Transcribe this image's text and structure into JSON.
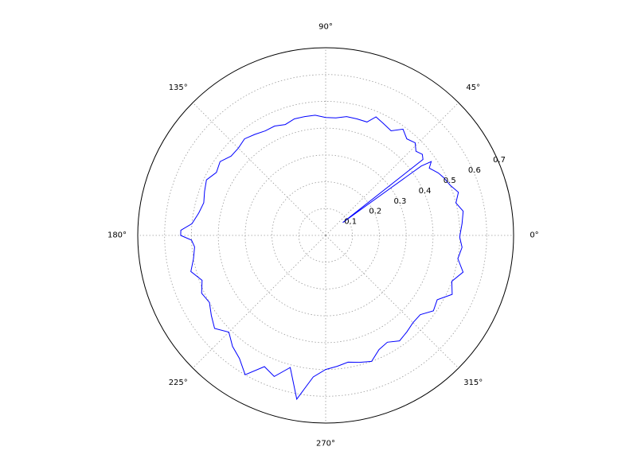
{
  "chart_data": {
    "type": "polar-line",
    "angle_unit": "degrees",
    "r_max": 0.7,
    "angle_ticks": [
      "0°",
      "45°",
      "90°",
      "135°",
      "180°",
      "225°",
      "270°",
      "315°"
    ],
    "angle_tick_values": [
      0,
      45,
      90,
      135,
      180,
      225,
      270,
      315
    ],
    "radial_ticks": [
      "0.1",
      "0.2",
      "0.3",
      "0.4",
      "0.5",
      "0.6",
      "0.7"
    ],
    "radial_tick_values": [
      0.1,
      0.2,
      0.3,
      0.4,
      0.5,
      0.6,
      0.7
    ],
    "radial_tick_label_angle": 22.5,
    "grid": true,
    "series": [
      {
        "color": "#0000ff",
        "theta": [
          0,
          5,
          10,
          14,
          18,
          22,
          26,
          29,
          31,
          33,
          35,
          36,
          37,
          38,
          40,
          43,
          46,
          50,
          54,
          58,
          63,
          67,
          70,
          75,
          80,
          85,
          90,
          95,
          100,
          105,
          110,
          115,
          120,
          125,
          130,
          135,
          140,
          145,
          150,
          155,
          160,
          165,
          170,
          175,
          178,
          180,
          182,
          185,
          190,
          195,
          200,
          205,
          210,
          215,
          220,
          225,
          230,
          235,
          240,
          245,
          250,
          255,
          260,
          265,
          270,
          275,
          280,
          285,
          290,
          295,
          300,
          305,
          310,
          315,
          320,
          325,
          330,
          335,
          340,
          345,
          350,
          355,
          359
        ],
        "r": [
          0.5,
          0.51,
          0.52,
          0.5,
          0.52,
          0.5,
          0.49,
          0.48,
          0.47,
          0.46,
          0.48,
          0.44,
          0.08,
          0.46,
          0.47,
          0.46,
          0.48,
          0.47,
          0.49,
          0.46,
          0.47,
          0.48,
          0.45,
          0.45,
          0.45,
          0.44,
          0.44,
          0.45,
          0.45,
          0.45,
          0.44,
          0.45,
          0.45,
          0.46,
          0.47,
          0.46,
          0.46,
          0.48,
          0.47,
          0.49,
          0.48,
          0.47,
          0.48,
          0.5,
          0.54,
          0.54,
          0.5,
          0.49,
          0.5,
          0.52,
          0.49,
          0.51,
          0.5,
          0.52,
          0.54,
          0.51,
          0.54,
          0.56,
          0.6,
          0.54,
          0.56,
          0.51,
          0.62,
          0.53,
          0.5,
          0.49,
          0.48,
          0.49,
          0.5,
          0.47,
          0.46,
          0.48,
          0.47,
          0.46,
          0.46,
          0.49,
          0.48,
          0.52,
          0.5,
          0.53,
          0.5,
          0.51,
          0.5
        ]
      }
    ]
  }
}
